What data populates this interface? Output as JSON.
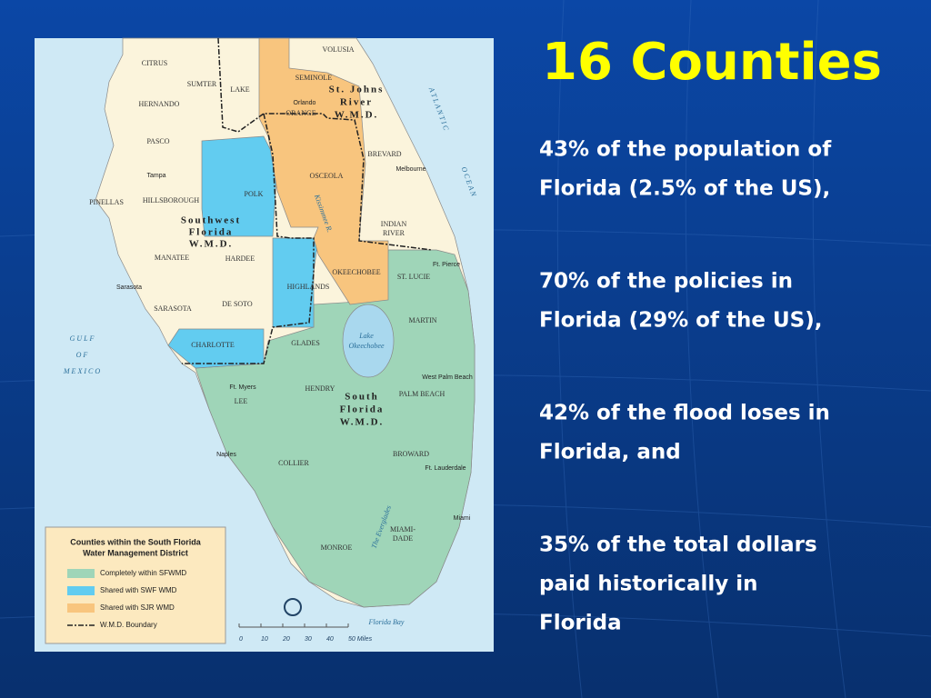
{
  "slide": {
    "title": "16 Counties",
    "bullets": [
      [
        "43% of the population of",
        "Florida (2.5% of the US),"
      ],
      [
        "70% of the policies in",
        "Florida (29% of the US),"
      ],
      [
        "42% of the flood loses in",
        "Florida, and"
      ],
      [
        "35% of the total dollars",
        "paid historically in",
        "Florida"
      ]
    ]
  },
  "map": {
    "labels": [
      "VOLUSIA",
      "CITRUS",
      "SEMINOLE",
      "SUMTER",
      "LAKE",
      "Orlando",
      "St. Johns",
      "River",
      "W.M.D.",
      "ORANGE",
      "HERNANDO",
      "A T L A N T I C",
      "PASCO",
      "BREVARD",
      "Melbourne",
      "O C E A N",
      "Tampa",
      "OSCEOLA",
      "POLK",
      "HILLSBOROUGH",
      "PINELLAS",
      "Southwest",
      "Florida",
      "W.M.D.",
      "INDIAN",
      "RIVER",
      "MANATEE",
      "HARDEE",
      "Ft. Pierce",
      "OKEECHOBEE",
      "ST. LUCIE",
      "Sarasota",
      "HIGHLANDS",
      "SARASOTA",
      "DE SOTO",
      "MARTIN",
      "G U L F",
      "O F",
      "M E X I C O",
      "Lake",
      "Okeechobee",
      "CHARLOTTE",
      "GLADES",
      "West Palm Beach",
      "Ft. Myers",
      "HENDRY",
      "South",
      "PALM BEACH",
      "LEE",
      "Florida",
      "W.M.D.",
      "Naples",
      "BROWARD",
      "COLLIER",
      "Ft. Lauderdale",
      "Miami",
      "The Everglades",
      "MIAMI-",
      "DADE",
      "MONROE",
      "Florida Bay",
      "Kissimmee R."
    ],
    "legend": {
      "title": [
        "Counties within the South Florida",
        "Water Management District"
      ],
      "items": [
        "Completely within SFWMD",
        "Shared with SWF WMD",
        "Shared with SJR WMD",
        "W.M.D. Boundary"
      ]
    },
    "scale": [
      "0",
      "10",
      "20",
      "30",
      "40",
      "50 Miles"
    ]
  }
}
